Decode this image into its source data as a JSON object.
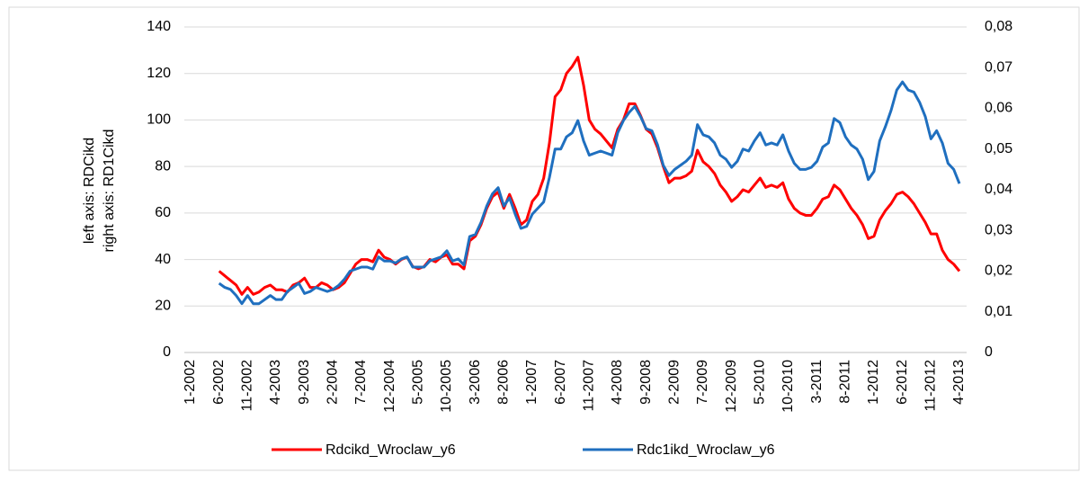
{
  "chart_data": {
    "type": "line",
    "ylabel": "left axis: RDCikd",
    "y2label": "right axis: RD1Cikd",
    "categories": [
      "1-2002",
      null,
      null,
      null,
      null,
      "6-2002",
      null,
      null,
      null,
      null,
      "11-2002",
      null,
      null,
      null,
      null,
      "4-2003",
      null,
      null,
      null,
      null,
      "9-2003",
      null,
      null,
      null,
      null,
      "2-2004",
      null,
      null,
      null,
      null,
      "7-2004",
      null,
      null,
      null,
      null,
      "12-2004",
      null,
      null,
      null,
      null,
      "5-2005",
      null,
      null,
      null,
      null,
      "10-2005",
      null,
      null,
      null,
      null,
      "3-2006",
      null,
      null,
      null,
      null,
      "8-2006",
      null,
      null,
      null,
      null,
      "1-2007",
      null,
      null,
      null,
      null,
      "6-2007",
      null,
      null,
      null,
      null,
      "11-2007",
      null,
      null,
      null,
      null,
      "4-2008",
      null,
      null,
      null,
      null,
      "9-2008",
      null,
      null,
      null,
      null,
      "2-2009",
      null,
      null,
      null,
      null,
      "7-2009",
      null,
      null,
      null,
      null,
      "12-2009",
      null,
      null,
      null,
      null,
      "5-2010",
      null,
      null,
      null,
      null,
      "10-2010",
      null,
      null,
      null,
      null,
      "3-2011",
      null,
      null,
      null,
      null,
      "8-2011",
      null,
      null,
      null,
      null,
      "1-2012",
      null,
      null,
      null,
      null,
      "6-2012",
      null,
      null,
      null,
      null,
      "11-2012",
      null,
      null,
      null,
      null,
      "4-2013"
    ],
    "series": [
      {
        "name": "Rdcikd_Wroclaw_y6",
        "color": "#ff0000",
        "axis": "y",
        "values": [
          null,
          null,
          null,
          null,
          null,
          35,
          33,
          31,
          29,
          25,
          28,
          25,
          26,
          28,
          29,
          27,
          27,
          26,
          29,
          30,
          32,
          28,
          28,
          30,
          29,
          27,
          28,
          30,
          34,
          38,
          40,
          40,
          39,
          44,
          41,
          40,
          38,
          40,
          41,
          37,
          36,
          37,
          40,
          39,
          41,
          42,
          38,
          38,
          36,
          48,
          50,
          55,
          62,
          67,
          69,
          62,
          68,
          62,
          55,
          57,
          65,
          68,
          75,
          90,
          110,
          113,
          120,
          123,
          127,
          115,
          100,
          96,
          94,
          91,
          88,
          96,
          100,
          107,
          107,
          102,
          96,
          94,
          88,
          80,
          73,
          75,
          75,
          76,
          78,
          87,
          82,
          80,
          77,
          72,
          69,
          65,
          67,
          70,
          69,
          72,
          75,
          71,
          72,
          71,
          73,
          66,
          62,
          60,
          59,
          59,
          62,
          66,
          67,
          72,
          70,
          66,
          62,
          59,
          55,
          49,
          50,
          57,
          61,
          64,
          68,
          69,
          67,
          64,
          60,
          56,
          51,
          51,
          44,
          40,
          38,
          35
        ]
      },
      {
        "name": "Rdc1ikd_Wroclaw_y6",
        "color": "#1f6fbf",
        "axis": "y2",
        "values": [
          null,
          null,
          null,
          null,
          null,
          0.017,
          0.016,
          0.0155,
          0.014,
          0.012,
          0.014,
          0.012,
          0.012,
          0.013,
          0.014,
          0.013,
          0.013,
          0.015,
          0.016,
          0.017,
          0.0145,
          0.015,
          0.016,
          0.0155,
          0.015,
          0.0155,
          0.0165,
          0.018,
          0.02,
          0.0205,
          0.021,
          0.021,
          0.0205,
          0.0235,
          0.0225,
          0.0225,
          0.022,
          0.023,
          0.0235,
          0.021,
          0.021,
          0.021,
          0.0225,
          0.023,
          0.0235,
          0.025,
          0.0225,
          0.023,
          0.0215,
          0.0285,
          0.029,
          0.032,
          0.036,
          0.039,
          0.0405,
          0.036,
          0.038,
          0.034,
          0.0305,
          0.031,
          0.034,
          0.0355,
          0.037,
          0.043,
          0.05,
          0.05,
          0.053,
          0.054,
          0.057,
          0.052,
          0.0485,
          0.049,
          0.0495,
          0.049,
          0.0485,
          0.054,
          0.057,
          0.059,
          0.0605,
          0.058,
          0.055,
          0.0545,
          0.051,
          0.046,
          0.0435,
          0.045,
          0.046,
          0.047,
          0.0485,
          0.056,
          0.0535,
          0.053,
          0.0515,
          0.0485,
          0.0475,
          0.0455,
          0.047,
          0.05,
          0.0495,
          0.052,
          0.054,
          0.051,
          0.0515,
          0.051,
          0.0535,
          0.0495,
          0.0465,
          0.045,
          0.045,
          0.0455,
          0.047,
          0.0505,
          0.0515,
          0.0575,
          0.0565,
          0.053,
          0.051,
          0.05,
          0.0475,
          0.0425,
          0.0445,
          0.052,
          0.0555,
          0.0595,
          0.0645,
          0.0665,
          0.0645,
          0.064,
          0.0615,
          0.058,
          0.0525,
          0.0545,
          0.0515,
          0.0465,
          0.045,
          0.0415
        ]
      }
    ],
    "ylim": [
      0,
      140
    ],
    "yticks": [
      0,
      20,
      40,
      60,
      80,
      100,
      120,
      140
    ],
    "y2lim": [
      0,
      0.08
    ],
    "y2ticks": [
      0,
      {
        "value": 0.01,
        "label": "0,01"
      },
      {
        "value": 0.02,
        "label": "0,02"
      },
      {
        "value": 0.03,
        "label": "0,03"
      },
      {
        "value": 0.04,
        "label": "0,04"
      },
      {
        "value": 0.05,
        "label": "0,05"
      },
      {
        "value": 0.06,
        "label": "0,06"
      },
      {
        "value": 0.07,
        "label": "0,07"
      },
      {
        "value": 0.08,
        "label": "0,08"
      }
    ],
    "grid": true,
    "legend": "bottom"
  }
}
